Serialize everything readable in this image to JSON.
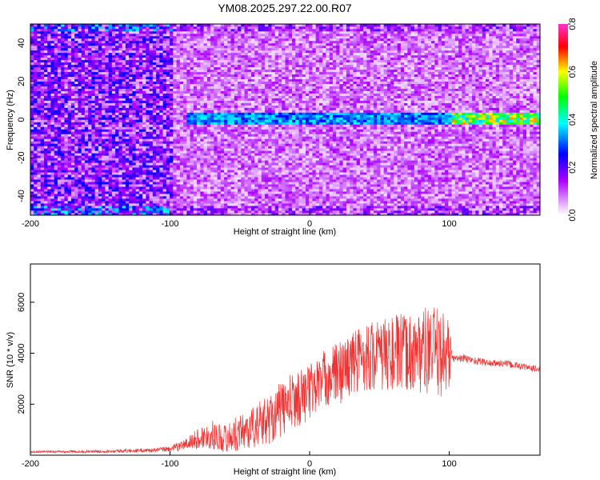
{
  "title": "YM08.2025.297.22.00.R07",
  "chart_data": [
    {
      "type": "heatmap",
      "xlabel": "Height of straight line (km)",
      "ylabel": "Frequency (Hz)",
      "xlim": [
        -200,
        165
      ],
      "ylim": [
        -50,
        50
      ],
      "x_ticks": [
        "-200",
        "-100",
        "0",
        "100"
      ],
      "y_ticks": [
        "40",
        "20",
        "0",
        "-20",
        "-40"
      ],
      "colorbar": {
        "label": "Normalized spectral amplitude",
        "range": [
          0,
          0.8
        ],
        "ticks": [
          "0.0",
          "0.2",
          "0.4",
          "0.6",
          "0.8"
        ],
        "colors": [
          "#ffffff",
          "#e6b0ff",
          "#aa00ff",
          "#0000ff",
          "#00ffff",
          "#00ff00",
          "#ffff00",
          "#ff0000",
          "#ff33cc"
        ]
      },
      "features": {
        "signal_band_hz": 0,
        "signal_x_range_km": [
          -90,
          165
        ],
        "strong_amplitude_x_range_km": [
          100,
          165
        ]
      }
    },
    {
      "type": "line",
      "xlabel": "Height of straight line (km)",
      "ylabel": "SNR (10 * v/v)",
      "xlim": [
        -200,
        165
      ],
      "ylim": [
        0,
        7500
      ],
      "x_ticks": [
        "-200",
        "-100",
        "0",
        "100"
      ],
      "y_ticks": [
        "2000",
        "4000",
        "6000"
      ],
      "series": [
        {
          "color": "#ee3333",
          "x": [
            -200,
            -150,
            -110,
            -100,
            -90,
            -80,
            -70,
            -60,
            -50,
            -40,
            -30,
            -20,
            -10,
            0,
            10,
            20,
            30,
            40,
            50,
            60,
            70,
            80,
            90,
            100,
            102,
            110,
            120,
            130,
            140,
            150,
            160,
            165
          ],
          "y": [
            130,
            150,
            200,
            250,
            400,
            650,
            800,
            650,
            900,
            1100,
            1400,
            1800,
            2200,
            2500,
            3000,
            3200,
            3600,
            3900,
            3900,
            4000,
            4000,
            4100,
            4000,
            4000,
            3800,
            3800,
            3700,
            3600,
            3600,
            3500,
            3400,
            3350
          ],
          "noise_envelope": [
            30,
            40,
            60,
            80,
            150,
            300,
            400,
            400,
            500,
            600,
            700,
            800,
            800,
            800,
            800,
            900,
            900,
            1000,
            1000,
            1100,
            1100,
            1200,
            1300,
            1100,
            100,
            120,
            110,
            100,
            100,
            100,
            90,
            90
          ]
        }
      ]
    }
  ]
}
